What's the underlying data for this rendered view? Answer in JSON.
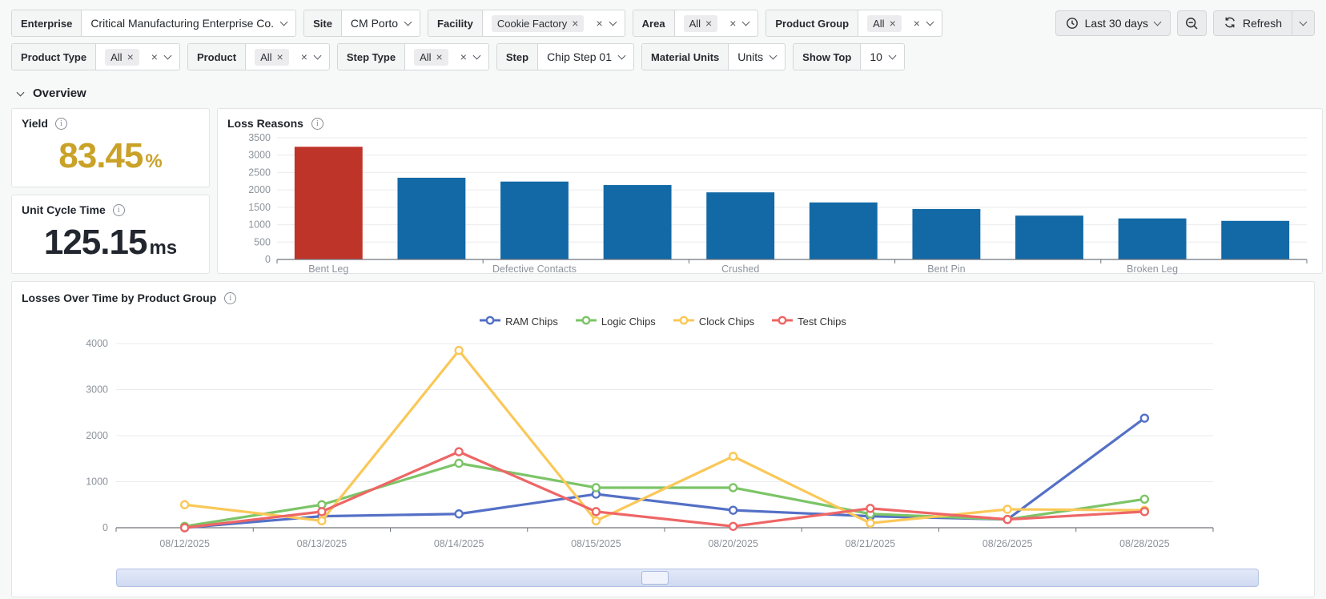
{
  "filters": {
    "row1": [
      {
        "label": "Enterprise",
        "type": "select",
        "value": "Critical Manufacturing Enterprise Co."
      },
      {
        "label": "Site",
        "type": "select",
        "value": "CM Porto"
      },
      {
        "label": "Facility",
        "type": "multiselect",
        "chips": [
          "Cookie Factory"
        ]
      },
      {
        "label": "Area",
        "type": "multiselect",
        "chips": [
          "All"
        ]
      },
      {
        "label": "Product Group",
        "type": "multiselect",
        "chips": [
          "All"
        ]
      }
    ],
    "row2": [
      {
        "label": "Product Type",
        "type": "multiselect",
        "chips": [
          "All"
        ]
      },
      {
        "label": "Product",
        "type": "multiselect",
        "chips": [
          "All"
        ]
      },
      {
        "label": "Step Type",
        "type": "multiselect",
        "chips": [
          "All"
        ]
      },
      {
        "label": "Step",
        "type": "select",
        "value": "Chip Step 01"
      },
      {
        "label": "Material Units",
        "type": "select",
        "value": "Units"
      },
      {
        "label": "Show Top",
        "type": "select",
        "value": "10"
      }
    ]
  },
  "toolbar": {
    "time_range": "Last 30 days",
    "refresh": "Refresh"
  },
  "section": {
    "title": "Overview"
  },
  "kpis": [
    {
      "title": "Yield",
      "value": "83.45",
      "unit": "%",
      "color": "#c9a227"
    },
    {
      "title": "Unit Cycle Time",
      "value": "125.15",
      "unit": "ms",
      "color": "#22262e"
    }
  ],
  "colors": {
    "bar_blue": "#1269a6",
    "bar_highlight_red": "#bf3429",
    "axis_text": "#8d939c",
    "gridline": "#e9ebef",
    "axis_line": "#6f757c"
  },
  "chart_data": [
    {
      "type": "bar",
      "title": "Loss Reasons",
      "categories": [
        "Bent Leg",
        "",
        "Defective Contacts",
        "",
        "Crushed",
        "",
        "Bent Pin",
        "",
        "Broken Leg",
        ""
      ],
      "values": [
        3240,
        2350,
        2240,
        2140,
        1930,
        1640,
        1450,
        1260,
        1180,
        1110
      ],
      "highlight_index": 0,
      "highlight_color": "#bf3429",
      "bar_color": "#1269a6",
      "ylim": [
        0,
        3500
      ],
      "ytick_step": 500,
      "grid": true,
      "legend_position": "none"
    },
    {
      "type": "line",
      "title": "Losses Over Time by Product Group",
      "x": [
        "08/12/2025",
        "08/13/2025",
        "08/14/2025",
        "08/15/2025",
        "08/20/2025",
        "08/21/2025",
        "08/26/2025",
        "08/28/2025"
      ],
      "series": [
        {
          "name": "RAM Chips",
          "color": "#5470c6",
          "values": [
            0,
            250,
            300,
            730,
            380,
            250,
            180,
            2380
          ]
        },
        {
          "name": "Logic Chips",
          "color": "#7cc467",
          "values": [
            30,
            500,
            1400,
            870,
            870,
            300,
            180,
            620
          ]
        },
        {
          "name": "Clock Chips",
          "color": "#fac858",
          "values": [
            500,
            150,
            3850,
            150,
            1550,
            100,
            400,
            380
          ]
        },
        {
          "name": "Test Chips",
          "color": "#ee6666",
          "values": [
            0,
            350,
            1650,
            350,
            30,
            420,
            180,
            350
          ]
        }
      ],
      "ylim": [
        0,
        4000
      ],
      "ytick_step": 1000,
      "grid": true,
      "legend_position": "top"
    }
  ]
}
